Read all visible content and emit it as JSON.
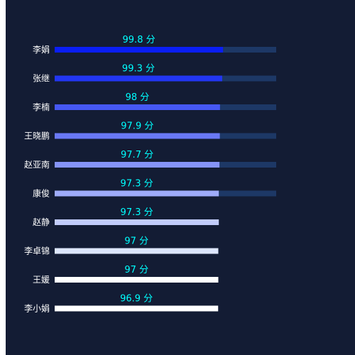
{
  "chart_data": {
    "type": "bar",
    "orientation": "horizontal",
    "categories": [
      "李娟",
      "张继",
      "李楠",
      "王晓鹏",
      "赵亚南",
      "康俊",
      "赵静",
      "李卓锦",
      "王媛",
      "李小娟"
    ],
    "values": [
      99.8,
      99.3,
      98,
      97.9,
      97.7,
      97.3,
      97.3,
      97,
      97,
      96.9
    ],
    "value_labels": [
      "99.8 分",
      "99.3 分",
      "98 分",
      "97.9 分",
      "97.7 分",
      "97.3 分",
      "97.3 分",
      "97 分",
      "97 分",
      "96.9 分"
    ],
    "unit": "分",
    "bar_colors": [
      "#0a1ef5",
      "#2236f3",
      "#4658f4",
      "#6a79f6",
      "#8594f8",
      "#9eabf9",
      "#c2ccfb",
      "#dde6fd",
      "#ffffff",
      "#ffffff"
    ],
    "background_track_rows": 6,
    "colors": {
      "background": "#131c34",
      "track": "#1d3866",
      "value_label": "#00ffff",
      "category_label": "#ffffff"
    }
  }
}
